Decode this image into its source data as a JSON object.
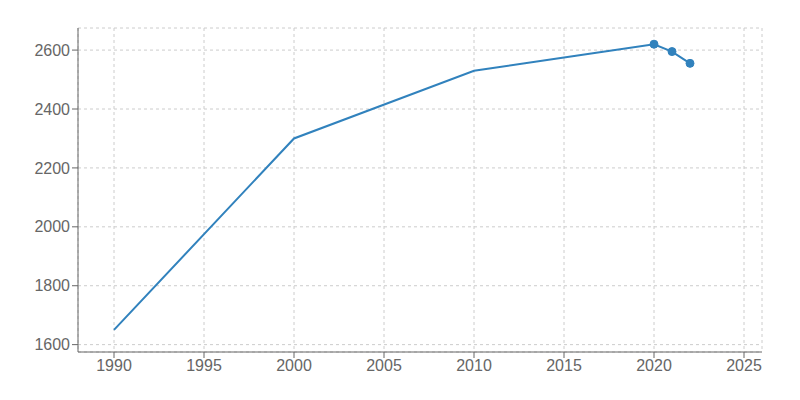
{
  "chart_data": {
    "type": "line",
    "x": [
      1990,
      2000,
      2010,
      2015,
      2020,
      2021,
      2022
    ],
    "values": [
      1650,
      2300,
      2530,
      2575,
      2620,
      2595,
      2555
    ],
    "marker": "circle",
    "marker_x": [
      2020,
      2021,
      2022
    ],
    "xlim": [
      1988,
      2026
    ],
    "ylim": [
      1575,
      2675
    ],
    "xticks": [
      1990,
      1995,
      2000,
      2005,
      2010,
      2015,
      2020,
      2025
    ],
    "yticks": [
      1600,
      1800,
      2000,
      2200,
      2400,
      2600
    ],
    "grid": true
  }
}
